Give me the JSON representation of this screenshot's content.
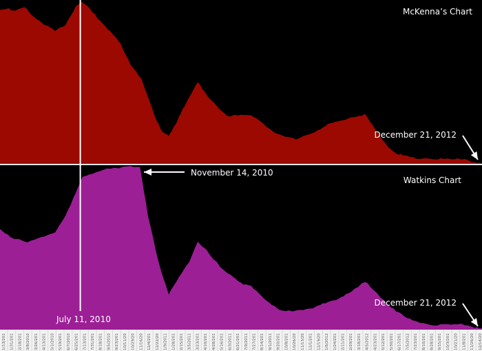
{
  "chart_data": [
    {
      "type": "area",
      "title": "McKenna's Chart",
      "xlabel": "",
      "ylabel": "",
      "x_unit": "days since 1/13/2010",
      "xlim": [
        0,
        1075
      ],
      "ylim": [
        0,
        100
      ],
      "color": "#9b0900",
      "x": [
        0,
        18,
        31,
        54,
        77,
        100,
        123,
        146,
        169,
        181,
        200,
        223,
        246,
        269,
        292,
        315,
        330,
        345,
        361,
        376,
        391,
        407,
        422,
        441,
        460,
        484,
        507,
        537,
        560,
        583,
        606,
        629,
        660,
        691,
        714,
        737,
        760,
        783,
        814,
        837,
        860,
        883,
        906,
        936,
        967,
        998,
        1028,
        1059,
        1075
      ],
      "values": [
        94,
        95,
        93,
        96,
        89,
        85,
        81,
        85,
        96,
        99,
        95,
        87,
        81,
        73,
        60,
        52,
        41,
        29,
        20,
        17,
        24,
        33,
        41,
        50,
        42,
        35,
        29,
        30,
        30,
        25,
        20,
        17,
        15,
        18,
        21,
        25,
        26,
        28,
        30,
        21,
        12,
        6,
        5,
        3,
        3,
        3,
        3,
        1,
        0
      ],
      "annotations": [
        {
          "text": "December 21, 2012"
        }
      ]
    },
    {
      "type": "area",
      "title": "Watkins Chart",
      "xlabel": "",
      "ylabel": "",
      "x_unit": "days since 1/13/2010",
      "xlim": [
        0,
        1075
      ],
      "ylim": [
        0,
        100
      ],
      "color": "#9c1f96",
      "x": [
        0,
        23,
        61,
        92,
        123,
        146,
        169,
        184,
        215,
        246,
        284,
        312,
        330,
        353,
        376,
        399,
        422,
        441,
        460,
        491,
        522,
        537,
        560,
        583,
        606,
        629,
        660,
        691,
        714,
        737,
        760,
        783,
        814,
        837,
        860,
        883,
        906,
        936,
        967,
        998,
        1028,
        1059,
        1075
      ],
      "values": [
        61,
        56,
        53,
        56,
        59,
        69,
        83,
        93,
        96,
        98,
        99,
        99,
        69,
        41,
        21,
        32,
        41,
        53,
        48,
        38,
        31,
        28,
        26,
        20,
        15,
        11,
        11,
        12,
        15,
        17,
        19,
        23,
        29,
        23,
        16,
        11,
        7,
        4,
        2,
        3,
        3,
        1,
        0
      ],
      "annotations": [
        {
          "text": "December 21, 2012"
        },
        {
          "text": "November 14, 2010"
        },
        {
          "text": "July 11, 2010"
        }
      ]
    }
  ],
  "marker_line": {
    "label": "July 11, 2010",
    "day": 179
  },
  "x_tick_labels": [
    "1/13/201",
    "1/31/201",
    "2/18/201",
    "3/8/2010",
    "3/26/201",
    "4/13/201",
    "5/1/2010",
    "5/19/201",
    "6/7/2010",
    "6/25/201",
    "7/13/201",
    "7/31/201",
    "8/18/201",
    "9/5/2010",
    "9/23/201",
    "10/11/20",
    "10/29/20",
    "11/16/20",
    "12/4/201",
    "12/22/20",
    "1/9/2011",
    "1/28/201",
    "2/15/201",
    "3/5/2011",
    "3/23/201",
    "4/10/201",
    "4/28/201",
    "5/16/201",
    "6/3/2011",
    "6/21/201",
    "7/9/2011",
    "7/27/201",
    "8/14/201",
    "9/1/2011",
    "9/20/201",
    "10/8/201",
    "10/26/20",
    "11/13/20",
    "12/1/201",
    "12/19/20",
    "1/6/2012",
    "1/24/201",
    "2/11/201",
    "2/29/201",
    "3/18/201",
    "4/5/2012",
    "4/23/201",
    "5/12/201",
    "5/30/201",
    "6/17/201",
    "7/5/2012",
    "7/23/201",
    "8/10/201",
    "8/28/201",
    "9/15/201",
    "10/3/201",
    "10/21/20",
    "11/8/201",
    "11/26/20",
    "12/14/20"
  ],
  "labels": {
    "top_title": "McKenna’s Chart",
    "bottom_title": "Watkins Chart",
    "top_end": "December 21, 2012",
    "bottom_end": "December 21, 2012",
    "nov": "November 14, 2010",
    "july": "July 11, 2010"
  }
}
